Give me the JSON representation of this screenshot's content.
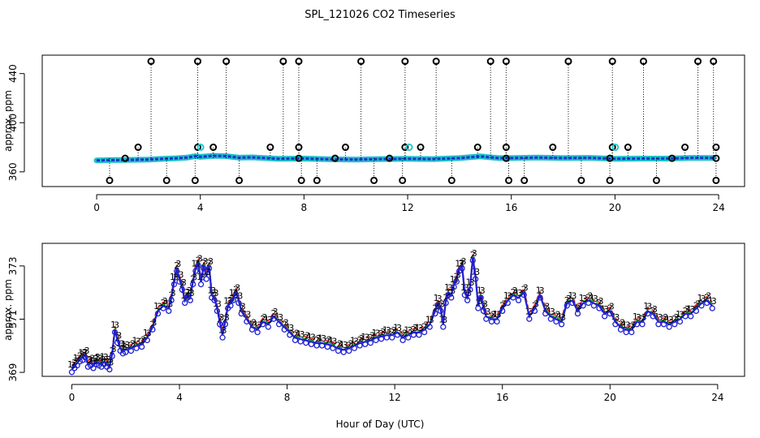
{
  "figure": {
    "title": "SPL_121026  CO2 Timeseries",
    "xlabel": "Hour of Day (UTC)"
  },
  "colors": {
    "baseline": "#1a33cc",
    "baseline_fill": "#20c0c8",
    "flag": "#000000",
    "cyan_flag": "#22cccc",
    "orange_flag": "#e08020",
    "inst1": "#e02020",
    "inst2": "#20b020",
    "inst3": "#2020d0"
  },
  "chart_data": [
    {
      "type": "scatter",
      "name": "top-panel",
      "ylabel": "approx. ppm",
      "xlim": [
        -2.1,
        25
      ],
      "ylim": [
        348,
        455
      ],
      "xticks": [
        0,
        4,
        8,
        12,
        16,
        20,
        24
      ],
      "yticks": [
        360,
        400,
        440
      ],
      "ytick_labels": [
        "360",
        "400",
        "440"
      ],
      "xtick_labels": [
        "0",
        "4",
        "8",
        "12",
        "16",
        "20",
        "24"
      ],
      "baseline": {
        "x": [
          0,
          0.5,
          1,
          1.5,
          2,
          2.5,
          3,
          3.5,
          3.8,
          4,
          4.5,
          5,
          5.5,
          6,
          7,
          8,
          9,
          10,
          11,
          12,
          13,
          14,
          14.8,
          15.5,
          16,
          17,
          18,
          19,
          20,
          21,
          22,
          23,
          23.8
        ],
        "y": [
          369.3,
          369.5,
          369.6,
          369.8,
          370.0,
          370.5,
          371.0,
          371.6,
          372.8,
          372.2,
          373.0,
          372.8,
          371.5,
          371.8,
          370.6,
          370.8,
          370.2,
          370.0,
          370.4,
          370.6,
          370.4,
          371.2,
          372.6,
          371.2,
          371.2,
          371.6,
          371.2,
          371.4,
          370.6,
          370.8,
          370.8,
          371.4,
          371.3
        ]
      },
      "high_flags": {
        "x": [
          2.1,
          3.9,
          5.0,
          7.2,
          7.8,
          10.2,
          11.9,
          13.1,
          15.2,
          15.8,
          18.2,
          19.9,
          21.1,
          23.2,
          23.8
        ],
        "y": [
          450,
          450,
          450,
          450,
          450,
          450,
          450,
          450,
          450,
          450,
          450,
          450,
          450,
          450,
          450
        ]
      },
      "mid_flags": {
        "x": [
          1.6,
          3.9,
          4.5,
          6.7,
          7.8,
          9.6,
          11.9,
          12.5,
          14.7,
          15.8,
          17.6,
          19.9,
          20.5,
          22.7,
          23.9
        ],
        "y": [
          380,
          380,
          380,
          380,
          380,
          380,
          380,
          380,
          380,
          380,
          380,
          380,
          380,
          380,
          380
        ]
      },
      "cyan_flags": {
        "x": [
          3.95,
          12.0,
          19.95
        ],
        "y": [
          380,
          380,
          380
        ]
      },
      "low_flags": {
        "x": [
          0.5,
          2.7,
          3.8,
          5.5,
          7.9,
          8.5,
          10.7,
          11.8,
          13.7,
          15.9,
          16.5,
          18.7,
          19.8,
          21.6,
          23.9
        ],
        "y": [
          353,
          353,
          353,
          353,
          353,
          353,
          353,
          353,
          353,
          353,
          353,
          353,
          353,
          353,
          353
        ]
      },
      "near_flags": {
        "x": [
          1.1,
          7.8,
          9.2,
          11.3,
          15.8,
          19.8,
          22.2,
          23.9
        ],
        "y": [
          371,
          371,
          371,
          371,
          371,
          371,
          371,
          371
        ]
      }
    },
    {
      "type": "line",
      "name": "bottom-panel",
      "ylabel": "approx. ppm",
      "xlim": [
        -1.1,
        25
      ],
      "ylim": [
        368.85,
        373.85
      ],
      "xticks": [
        0,
        4,
        8,
        12,
        16,
        20,
        24
      ],
      "yticks": [
        369,
        371,
        373
      ],
      "ytick_labels": [
        "369",
        "371",
        "373"
      ],
      "xtick_labels": [
        "0",
        "4",
        "8",
        "12",
        "16",
        "20",
        "24"
      ],
      "series": [
        {
          "name": "1",
          "label": "1",
          "offset": 0.14
        },
        {
          "name": "2",
          "label": "2",
          "offset": 0.06
        },
        {
          "name": "3",
          "label": "3",
          "offset": 0.0
        }
      ],
      "x": [
        0.0,
        0.1,
        0.2,
        0.3,
        0.4,
        0.5,
        0.6,
        0.7,
        0.8,
        0.9,
        1.0,
        1.1,
        1.2,
        1.3,
        1.4,
        1.5,
        1.6,
        1.7,
        1.8,
        1.9,
        2.0,
        2.2,
        2.4,
        2.6,
        2.8,
        3.0,
        3.2,
        3.4,
        3.6,
        3.7,
        3.8,
        3.9,
        4.0,
        4.1,
        4.2,
        4.3,
        4.4,
        4.5,
        4.6,
        4.7,
        4.8,
        4.9,
        5.0,
        5.1,
        5.2,
        5.3,
        5.4,
        5.5,
        5.6,
        5.7,
        5.8,
        5.9,
        6.0,
        6.1,
        6.2,
        6.3,
        6.5,
        6.7,
        6.9,
        7.1,
        7.3,
        7.5,
        7.7,
        7.9,
        8.1,
        8.3,
        8.5,
        8.7,
        8.9,
        9.1,
        9.3,
        9.5,
        9.7,
        9.9,
        10.1,
        10.3,
        10.5,
        10.7,
        10.9,
        11.1,
        11.3,
        11.5,
        11.7,
        11.9,
        12.1,
        12.3,
        12.5,
        12.7,
        12.9,
        13.1,
        13.3,
        13.5,
        13.6,
        13.7,
        13.8,
        13.9,
        14.0,
        14.1,
        14.2,
        14.3,
        14.4,
        14.5,
        14.6,
        14.7,
        14.8,
        14.9,
        15.0,
        15.1,
        15.2,
        15.3,
        15.4,
        15.6,
        15.8,
        16.0,
        16.2,
        16.4,
        16.6,
        16.8,
        17.0,
        17.2,
        17.4,
        17.6,
        17.8,
        18.0,
        18.2,
        18.4,
        18.6,
        18.8,
        19.0,
        19.2,
        19.4,
        19.6,
        19.8,
        20.0,
        20.2,
        20.4,
        20.6,
        20.8,
        21.0,
        21.2,
        21.4,
        21.6,
        21.8,
        22.0,
        22.2,
        22.4,
        22.6,
        22.8,
        23.0,
        23.2,
        23.4,
        23.6,
        23.8
      ],
      "values": [
        369.1,
        369.25,
        369.35,
        369.5,
        369.55,
        369.65,
        369.3,
        369.35,
        369.25,
        369.4,
        369.35,
        369.3,
        369.4,
        369.3,
        369.2,
        369.7,
        370.6,
        370.2,
        369.9,
        369.8,
        369.85,
        369.9,
        370.0,
        370.05,
        370.3,
        370.7,
        371.3,
        371.5,
        371.4,
        371.8,
        372.4,
        372.9,
        372.5,
        372.2,
        371.7,
        371.9,
        371.8,
        372.4,
        372.9,
        373.1,
        372.4,
        373.0,
        372.6,
        373.0,
        371.9,
        371.8,
        371.4,
        370.9,
        370.4,
        370.9,
        371.5,
        371.6,
        371.8,
        372.0,
        371.7,
        371.3,
        371.0,
        370.7,
        370.6,
        370.9,
        370.8,
        371.1,
        370.9,
        370.7,
        370.5,
        370.3,
        370.25,
        370.2,
        370.15,
        370.1,
        370.1,
        370.05,
        370.0,
        369.9,
        369.85,
        369.9,
        370.0,
        370.1,
        370.15,
        370.2,
        370.3,
        370.35,
        370.4,
        370.4,
        370.5,
        370.3,
        370.4,
        370.5,
        370.5,
        370.6,
        370.8,
        371.3,
        371.6,
        371.4,
        370.8,
        371.7,
        372.0,
        371.9,
        372.3,
        372.5,
        372.9,
        373.0,
        372.0,
        371.8,
        372.2,
        373.3,
        372.6,
        371.5,
        371.9,
        371.4,
        371.1,
        371.0,
        371.0,
        371.4,
        371.7,
        371.9,
        371.8,
        372.0,
        371.1,
        371.4,
        371.9,
        371.3,
        371.1,
        371.0,
        370.9,
        371.6,
        371.7,
        371.3,
        371.6,
        371.7,
        371.6,
        371.5,
        371.2,
        371.3,
        370.9,
        370.7,
        370.6,
        370.6,
        370.9,
        370.9,
        371.3,
        371.2,
        370.9,
        370.9,
        370.8,
        370.9,
        371.0,
        371.2,
        371.2,
        371.4,
        371.6,
        371.7,
        371.5
      ]
    }
  ]
}
